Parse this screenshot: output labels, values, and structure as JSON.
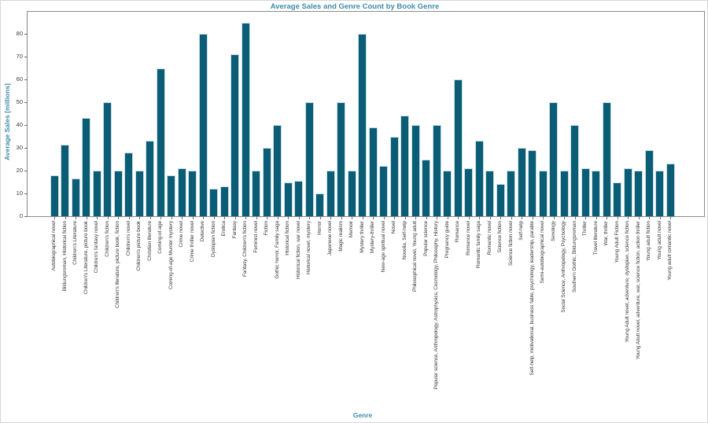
{
  "chart_data": {
    "type": "bar",
    "title": "Average Sales and Genre Count by Book Genre",
    "xlabel": "Genre",
    "ylabel": "Average Sales [millions]",
    "ylim": [
      0,
      89
    ],
    "yticks": [
      0,
      10,
      20,
      30,
      40,
      50,
      60,
      70,
      80
    ],
    "grid": false,
    "legend": "none",
    "bar_color": "#0b5d75",
    "bar_edge_color": "#c6dde5",
    "accent_text_color": "#3f8cac",
    "tick_text_color": "#3a3a3a",
    "spine_color": "#8a8a8a",
    "categories": [
      "Autobiographical novel",
      "Bildungsroman, Historical fiction",
      "Children's Literature",
      "Children's Literature, picture book",
      "Children's fantasy novel",
      "Children's fiction",
      "Children's literature, picture book, fiction",
      "Children's novel",
      "Children's picture book",
      "Christian literature",
      "Coming-of-age",
      "Coming-of-age Murder mystery",
      "Crime novel",
      "Crime thriller novel",
      "Detective",
      "Dystopian fiction",
      "Erotica",
      "Fantasy",
      "Fantasy, Children's fiction",
      "Feminist novel",
      "Fiction",
      "Gothic horror, Family saga",
      "Historical fiction",
      "Historical fiction, war novel",
      "Historical novel, mystery",
      "Horror",
      "Japanese novel",
      "Magic realism",
      "Memoir",
      "Mystery thriller",
      "Mystery-thriller",
      "New-age spiritual novel",
      "Novel",
      "Novella, Self-help",
      "Philosophical novel, Young adult",
      "Popular science",
      "Popular science, Anthropology, Astrophysics, Cosmology, Philosophy, History",
      "Pregnancy guide",
      "Romance",
      "Romance novel",
      "Romantic family saga",
      "Romantic novel",
      "Science fiction",
      "Science fiction novel",
      "Self-help",
      "Self-help, motivational, business fable, psychology, leadership, parable",
      "Semi-autobiographical novel",
      "Sexology",
      "Social Science, Anthropology, Psychology",
      "Southern Gothic, Bildungsroman",
      "Thriller",
      "Travel literature",
      "War, thriller",
      "Young Adult Fiction",
      "Young Adult novel, adventure, dystopian, science fiction",
      "Young Adult novel, adventure, war, science fiction, action thriller",
      "Young adult fiction",
      "Young adult novel",
      "Young adult romantic novel"
    ],
    "values": [
      18,
      31.5,
      16.5,
      43,
      20,
      50,
      20,
      28,
      20,
      33,
      65,
      18,
      21,
      20,
      80,
      12,
      13,
      71,
      85,
      20,
      30,
      40,
      15,
      15.5,
      50,
      10,
      20,
      50,
      20,
      80,
      39,
      22,
      35,
      44,
      40,
      25,
      40,
      20,
      60,
      21,
      33,
      20,
      14,
      20,
      30,
      29,
      20,
      50,
      20,
      40,
      21,
      20,
      50,
      15,
      21,
      20,
      29,
      20,
      23
    ]
  }
}
